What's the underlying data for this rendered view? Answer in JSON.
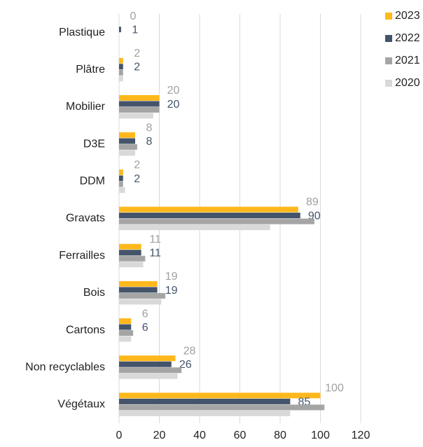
{
  "chart_data": {
    "type": "hbar",
    "categories": [
      "Plastique",
      "Plâtre",
      "Mobilier",
      "D3E",
      "DDM",
      "Gravats",
      "Ferrailles",
      "Bois",
      "Cartons",
      "Non recyclables",
      "Végétaux"
    ],
    "series": [
      {
        "name": "2023",
        "color": "#FFB81C",
        "values": [
          0,
          2,
          20,
          8,
          2,
          89,
          11,
          19,
          6,
          28,
          100
        ],
        "data_labels": true,
        "label_color": "#a0a0a0"
      },
      {
        "name": "2022",
        "color": "#44546A",
        "values": [
          1,
          2,
          20,
          8,
          2,
          90,
          11,
          19,
          6,
          26,
          85
        ],
        "data_labels": true,
        "label_color": "#44546A"
      },
      {
        "name": "2021",
        "color": "#A5A5A5",
        "values": [
          0,
          2,
          20,
          9,
          2,
          97,
          13,
          23,
          7,
          31,
          102
        ]
      },
      {
        "name": "2020",
        "color": "#D9D9D9",
        "values": [
          0,
          2,
          17,
          8,
          3,
          75,
          12,
          21,
          6,
          29,
          85
        ]
      }
    ],
    "xlim": [
      0,
      120
    ],
    "xticks": [
      0,
      20,
      40,
      60,
      80,
      100,
      120
    ],
    "grid": true,
    "legend": "right"
  }
}
